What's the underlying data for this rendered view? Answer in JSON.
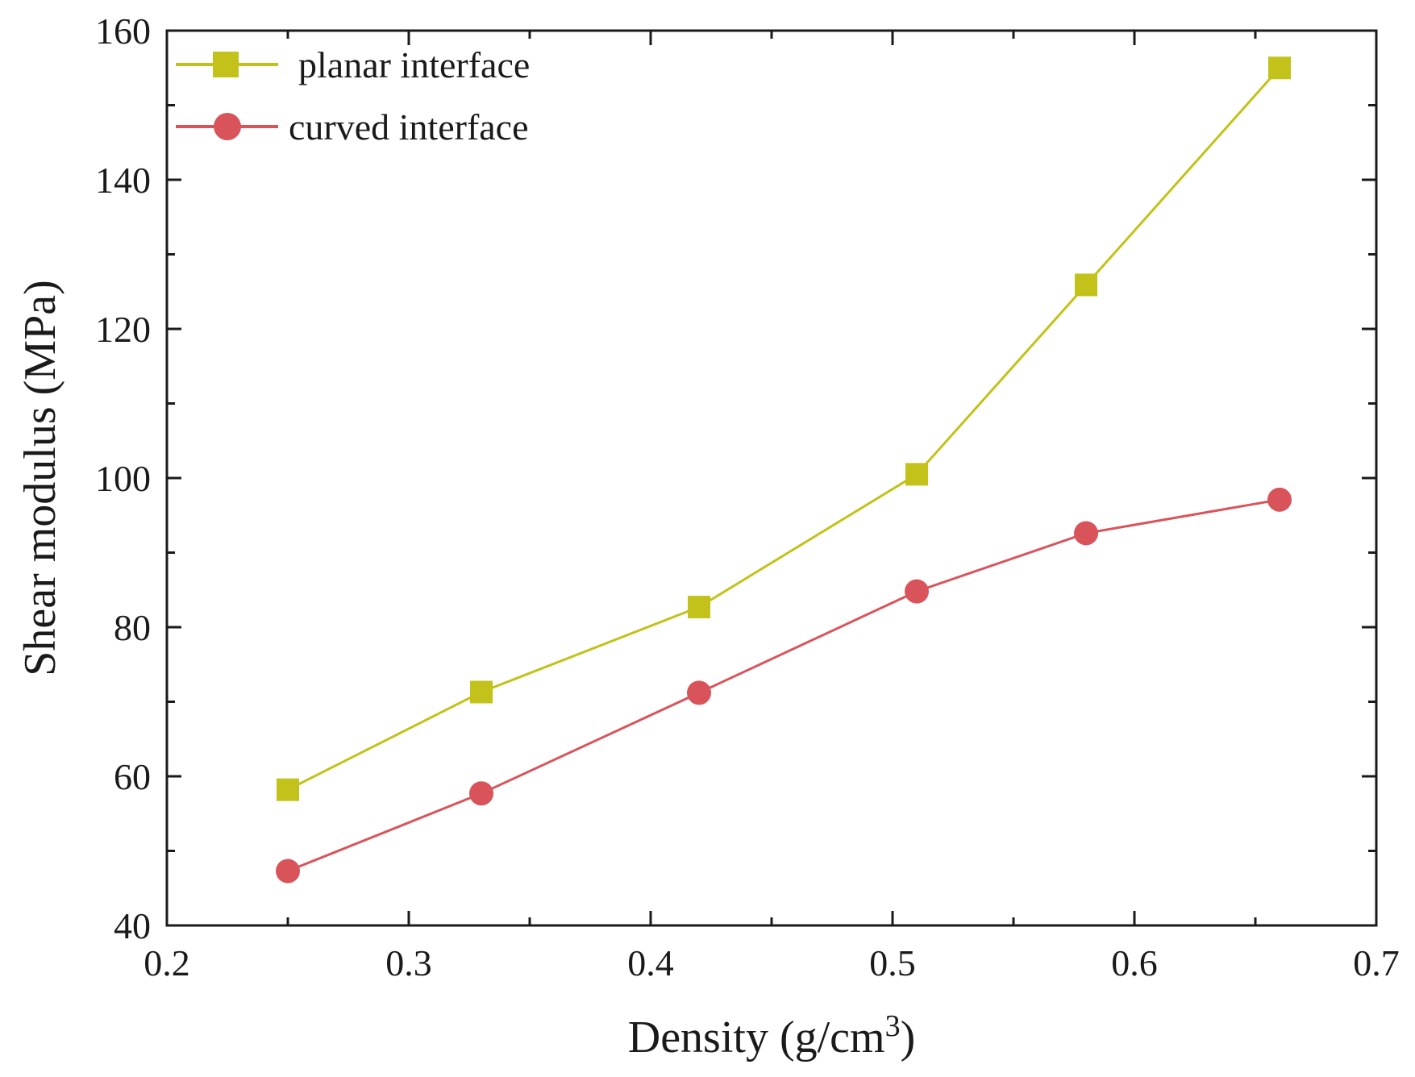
{
  "chart_data": {
    "type": "line",
    "title": "",
    "xlabel": "Density (g/cm",
    "xlabel_sup": "3",
    "xlabel_close": ")",
    "ylabel": "Shear modulus (MPa)",
    "xlim": [
      0.2,
      0.7
    ],
    "ylim": [
      40,
      160
    ],
    "x_ticks": [
      0.2,
      0.3,
      0.4,
      0.5,
      0.6,
      0.7
    ],
    "x_tick_labels": [
      "0.2",
      "0.3",
      "0.4",
      "0.5",
      "0.6",
      "0.7"
    ],
    "y_ticks": [
      40,
      60,
      80,
      100,
      120,
      140,
      160
    ],
    "y_tick_labels": [
      "40",
      "60",
      "80",
      "100",
      "120",
      "140",
      "160"
    ],
    "grid": false,
    "legend_position": "top-left",
    "series": [
      {
        "name": "planar interface",
        "marker": "square",
        "color": "#c2c21a",
        "x": [
          0.25,
          0.33,
          0.42,
          0.51,
          0.58,
          0.66
        ],
        "values": [
          58.2,
          71.3,
          82.7,
          100.5,
          125.9,
          155.0
        ]
      },
      {
        "name": "curved interface",
        "marker": "circle",
        "color": "#d9545a",
        "x": [
          0.25,
          0.33,
          0.42,
          0.51,
          0.58,
          0.66
        ],
        "values": [
          47.3,
          57.7,
          71.2,
          84.8,
          92.6,
          97.1
        ]
      }
    ]
  }
}
